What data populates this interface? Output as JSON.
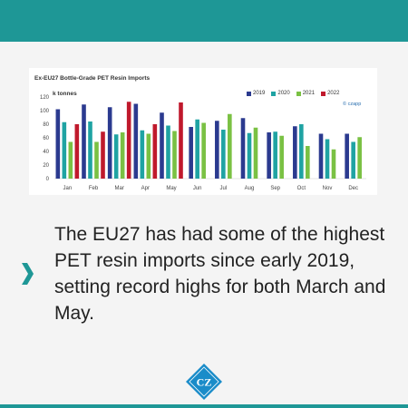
{
  "chart_data": {
    "type": "bar",
    "title": "Ex-EU27 Bottle-Grade PET Resin Imports",
    "ylabel": "k tonnes",
    "xlabel": "",
    "ylim": [
      0,
      120
    ],
    "yticks": [
      0,
      20,
      40,
      60,
      80,
      100,
      120
    ],
    "categories": [
      "Jan",
      "Feb",
      "Mar",
      "Apr",
      "May",
      "Jun",
      "Jul",
      "Aug",
      "Sep",
      "Oct",
      "Nov",
      "Dec"
    ],
    "series": [
      {
        "name": "2019",
        "color": "#2b3a8f",
        "values": [
          102,
          109,
          105,
          110,
          97,
          76,
          85,
          89,
          68,
          77,
          66,
          66
        ]
      },
      {
        "name": "2020",
        "color": "#1fa3a3",
        "values": [
          83,
          84,
          65,
          71,
          78,
          87,
          72,
          67,
          69,
          80,
          58,
          54
        ]
      },
      {
        "name": "2021",
        "color": "#7ac143",
        "values": [
          54,
          54,
          68,
          66,
          70,
          82,
          95,
          75,
          63,
          48,
          43,
          61
        ]
      },
      {
        "name": "2022",
        "color": "#c0192c",
        "values": [
          80,
          69,
          113,
          80,
          112,
          null,
          null,
          null,
          null,
          null,
          null,
          null
        ]
      }
    ],
    "grid": false,
    "legend": "top-right",
    "watermark": "© czapp"
  },
  "caption": "The EU27 has had some of the highest PET resin imports since early 2019, setting record highs for both March and May.",
  "logo_text": "CZ",
  "colors": {
    "band": "#1e9796",
    "chevron": "#1e9796",
    "logo": "#1a8cc9",
    "background": "#f4f4f4"
  }
}
